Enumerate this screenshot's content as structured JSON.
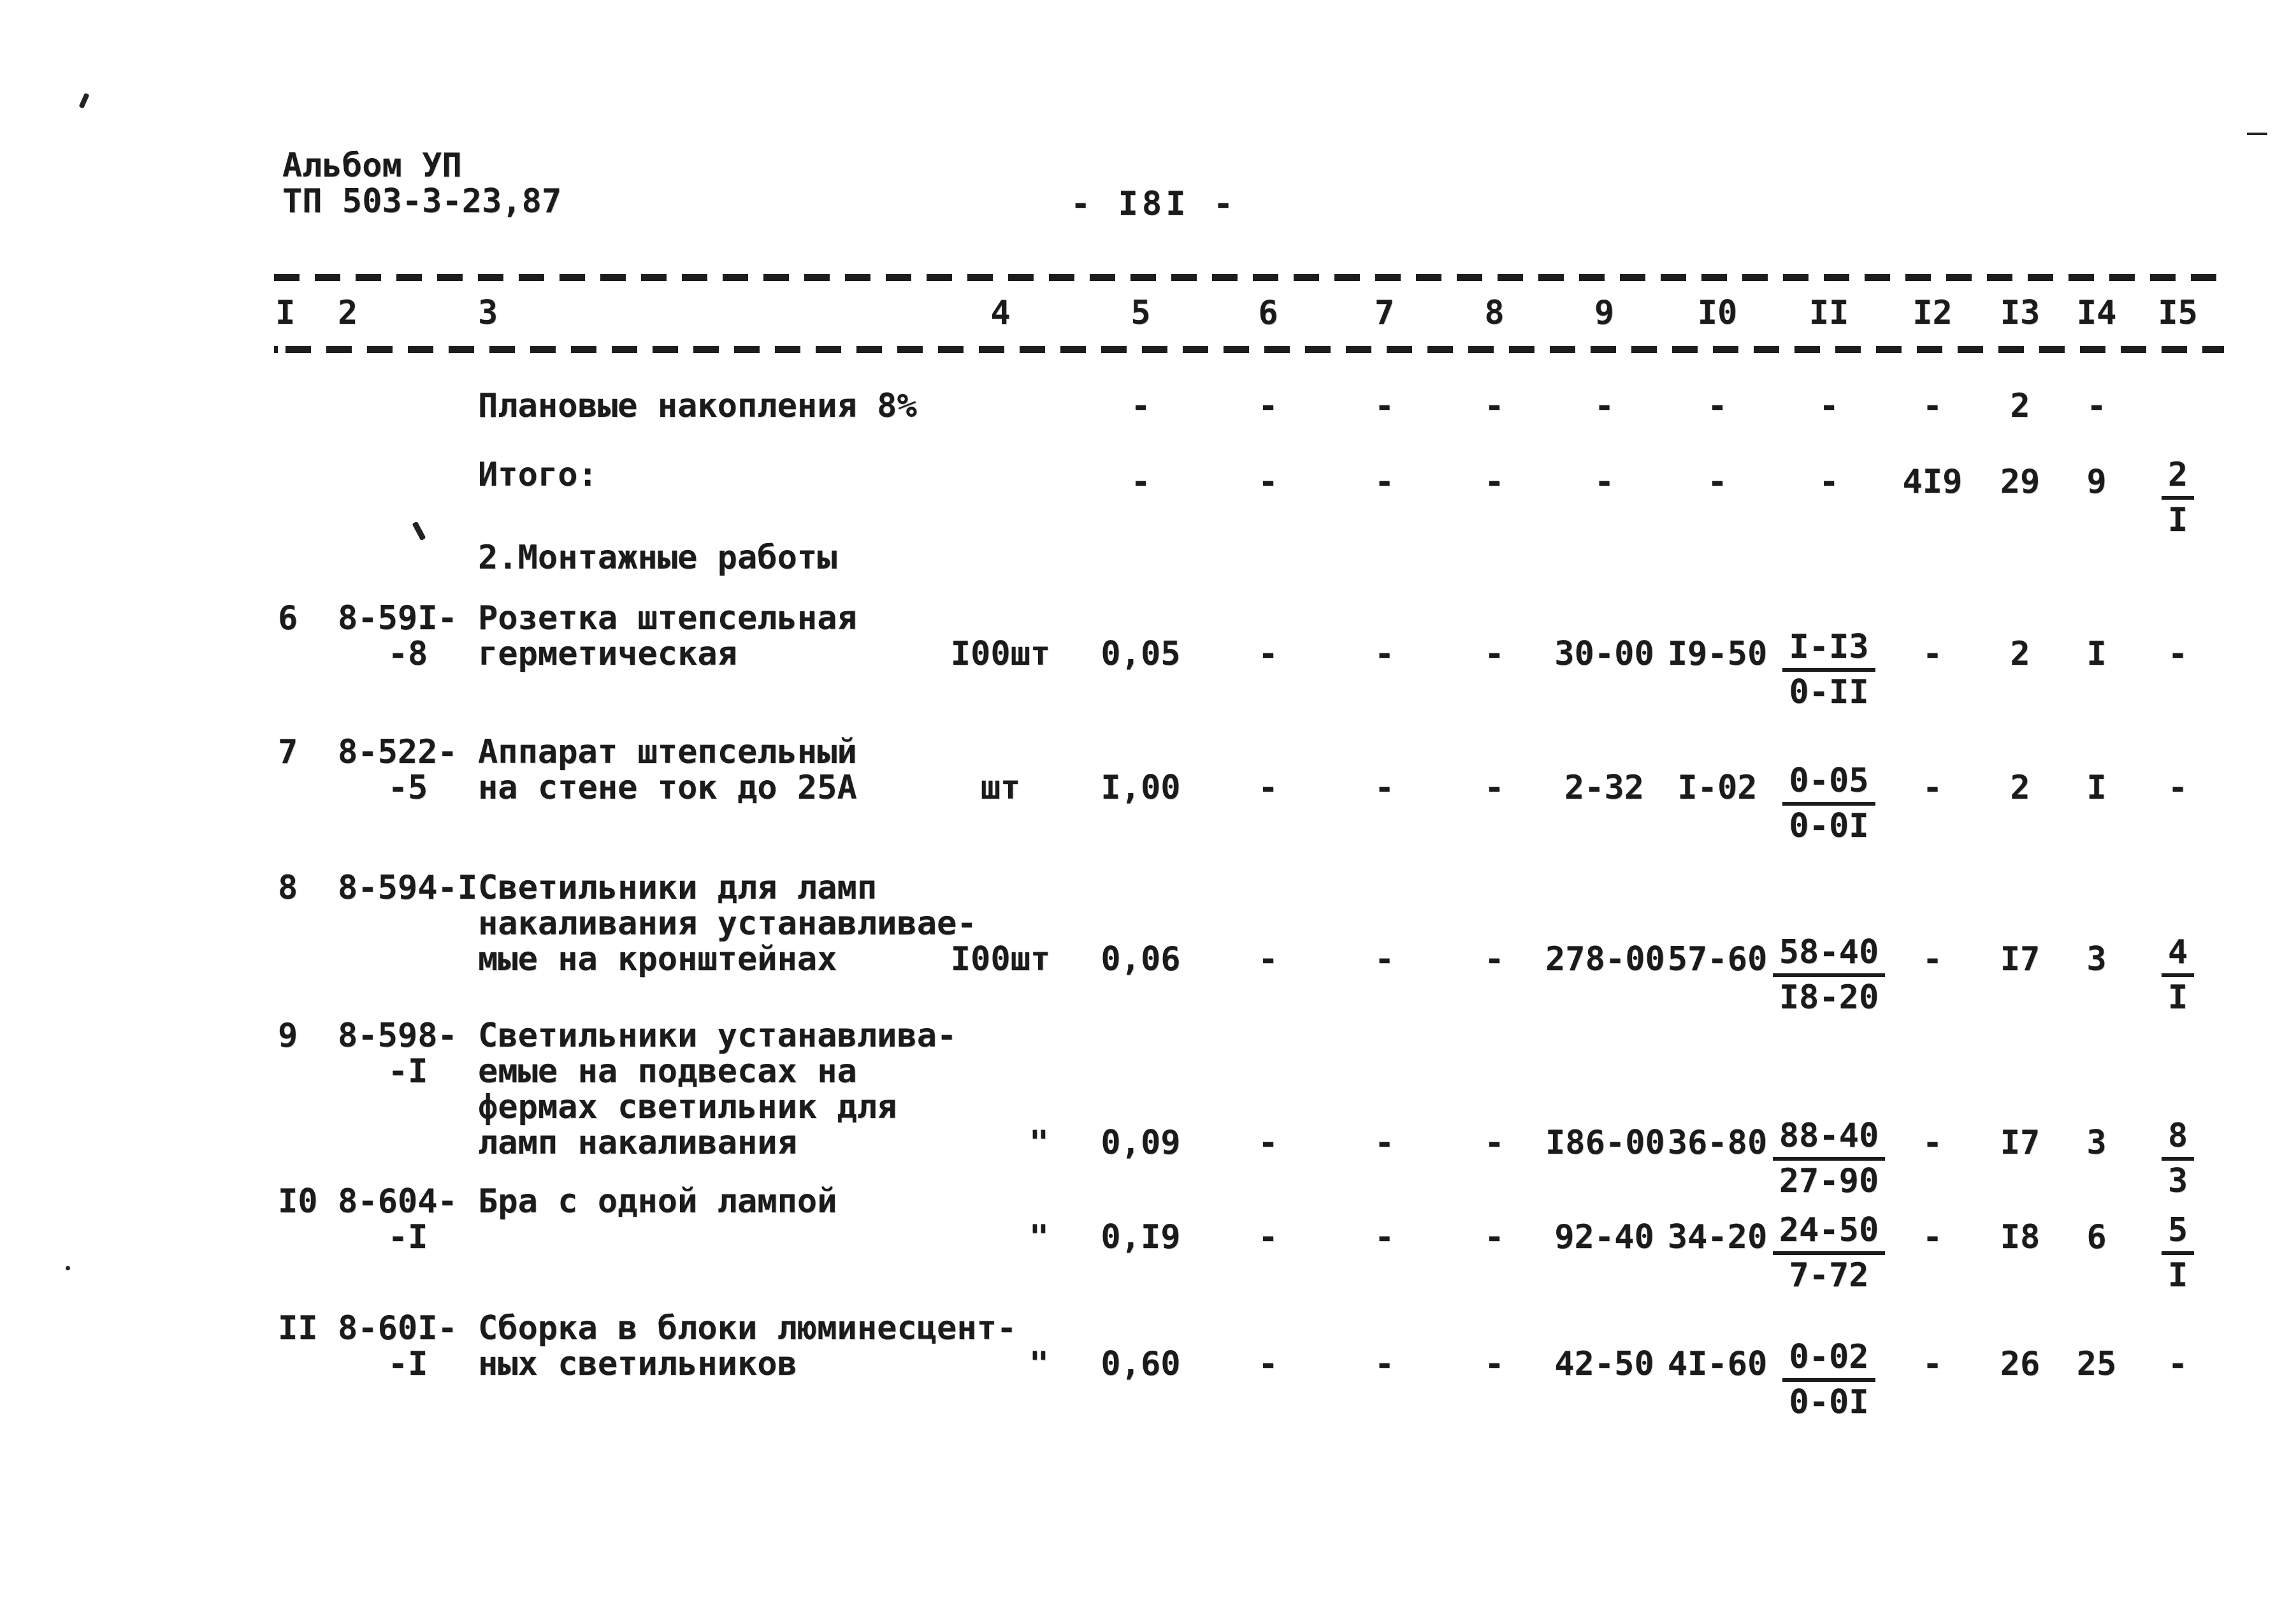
{
  "header": {
    "album_line": "Альбом УП",
    "document_code": "ТП 503-3-23,87",
    "page_number": "- I8I -"
  },
  "table": {
    "column_numbers": [
      "I",
      "2",
      "3",
      "4",
      "5",
      "6",
      "7",
      "8",
      "9",
      "I0",
      "II",
      "I2",
      "I3",
      "I4",
      "I5"
    ],
    "rows": [
      {
        "type": "summary",
        "name": "Плановые накопления 8%",
        "c5": "-",
        "c6": "-",
        "c7": "-",
        "c8": "-",
        "c9": "-",
        "c10": "-",
        "c11": "-",
        "c12": "-",
        "c13": "2",
        "c14": "-"
      },
      {
        "type": "summary",
        "name": "Итого:",
        "c5": "-",
        "c6": "-",
        "c7": "-",
        "c8": "-",
        "c9": "-",
        "c10": "-",
        "c11": "-",
        "c12": "4I9",
        "c13": "29",
        "c14": "9",
        "c15": {
          "num": "2",
          "den": "I"
        }
      },
      {
        "type": "heading",
        "name": "2.Монтажные работы"
      },
      {
        "type": "item",
        "no": "6",
        "code": [
          "8-59I-",
          "-8"
        ],
        "name": [
          "Розетка штепсельная",
          "герметическая"
        ],
        "unit": "I00шт",
        "c5": "0,05",
        "c6": "-",
        "c7": "-",
        "c8": "-",
        "c9": "30-00",
        "c10": "I9-50",
        "c11": {
          "num": "I-I3",
          "den": "0-II"
        },
        "c12": "-",
        "c13": "2",
        "c14": "I",
        "c15": "-"
      },
      {
        "type": "item",
        "no": "7",
        "code": [
          "8-522-",
          "-5"
        ],
        "name": [
          "Аппарат штепсельный",
          "на стене ток до 25А"
        ],
        "unit": "шт",
        "c5": "I,00",
        "c6": "-",
        "c7": "-",
        "c8": "-",
        "c9": "2-32",
        "c10": "I-02",
        "c11": {
          "num": "0-05",
          "den": "0-0I"
        },
        "c12": "-",
        "c13": "2",
        "c14": "I",
        "c15": "-"
      },
      {
        "type": "item",
        "no": "8",
        "code": [
          "8-594-I"
        ],
        "name": [
          "Светильники для ламп",
          "накаливания устанавливае-",
          "мые на кронштейнах"
        ],
        "unit": "I00шт",
        "c5": "0,06",
        "c6": "-",
        "c7": "-",
        "c8": "-",
        "c9": "278-00",
        "c10": "57-60",
        "c11": {
          "num": "58-40",
          "den": "I8-20"
        },
        "c12": "-",
        "c13": "I7",
        "c14": "3",
        "c15": {
          "num": "4",
          "den": "I"
        }
      },
      {
        "type": "item",
        "no": "9",
        "code": [
          "8-598-",
          "-I"
        ],
        "name": [
          "Светильники устанавлива-",
          "емые на подвесах на",
          "фермах светильник для",
          "ламп накаливания"
        ],
        "unit": "\"",
        "c5": "0,09",
        "c6": "-",
        "c7": "-",
        "c8": "-",
        "c9": "I86-00",
        "c10": "36-80",
        "c11": {
          "num": "88-40",
          "den": "27-90"
        },
        "c12": "-",
        "c13": "I7",
        "c14": "3",
        "c15": {
          "num": "8",
          "den": "3"
        }
      },
      {
        "type": "item",
        "no": "I0",
        "code": [
          "8-604-",
          "-I"
        ],
        "name": [
          "Бра с одной лампой"
        ],
        "unit": "\"",
        "c5": "0,I9",
        "c6": "-",
        "c7": "-",
        "c8": "-",
        "c9": "92-40",
        "c10": "34-20",
        "c11": {
          "num": "24-50",
          "den": "7-72"
        },
        "c12": "-",
        "c13": "I8",
        "c14": "6",
        "c15": {
          "num": "5",
          "den": "I"
        }
      },
      {
        "type": "item",
        "no": "II",
        "code": [
          "8-60I-",
          "-I"
        ],
        "name": [
          "Сборка в блоки люминесцент-",
          "ных светильников"
        ],
        "unit": "\"",
        "c5": "0,60",
        "c6": "-",
        "c7": "-",
        "c8": "-",
        "c9": "42-50",
        "c10": "4I-60",
        "c11": {
          "num": "0-02",
          "den": "0-0I"
        },
        "c12": "-",
        "c13": "26",
        "c14": "25",
        "c15": "-"
      }
    ]
  },
  "ink_color": "#1b1b1b",
  "paper_color": "#ffffff"
}
